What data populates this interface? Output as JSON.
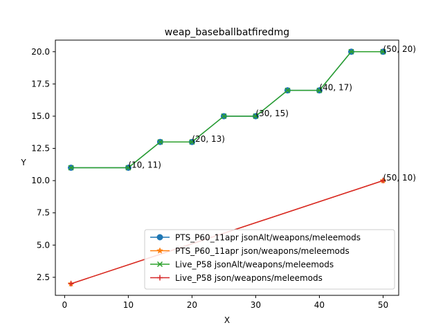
{
  "chart_data": {
    "type": "line",
    "title": "weap_baseballbatfiredmg",
    "xlabel": "X",
    "ylabel": "Y",
    "xlim": [
      -1.45,
      52.45
    ],
    "ylim": [
      1.1,
      20.9
    ],
    "xticks": [
      0,
      10,
      20,
      30,
      40,
      50
    ],
    "yticks": [
      2.5,
      5.0,
      7.5,
      10.0,
      12.5,
      15.0,
      17.5,
      20.0
    ],
    "grid": false,
    "legend_position": "lower-right",
    "series": [
      {
        "name": "PTS_P60_11apr jsonAlt/weapons/meleemods",
        "color": "#1f77b4",
        "marker": "circle",
        "x": [
          1,
          10,
          15,
          20,
          25,
          30,
          35,
          40,
          45,
          50
        ],
        "y": [
          11,
          11,
          13,
          13,
          15,
          15,
          17,
          17,
          20,
          20
        ]
      },
      {
        "name": "PTS_P60_11apr json/weapons/meleemods",
        "color": "#ff7f0e",
        "marker": "star",
        "x": [
          1,
          50
        ],
        "y": [
          2,
          10
        ]
      },
      {
        "name": "Live_P58 jsonAlt/weapons/meleemods",
        "color": "#2ca02c",
        "marker": "x",
        "x": [
          1,
          10,
          15,
          20,
          25,
          30,
          35,
          40,
          45,
          50
        ],
        "y": [
          11,
          11,
          13,
          13,
          15,
          15,
          17,
          17,
          20,
          20
        ]
      },
      {
        "name": "Live_P58 json/weapons/meleemods",
        "color": "#d62728",
        "marker": "plus",
        "x": [
          1,
          50
        ],
        "y": [
          2,
          10
        ]
      }
    ],
    "annotations": [
      {
        "x": 10,
        "y": 11,
        "text": "(10, 11)"
      },
      {
        "x": 20,
        "y": 13,
        "text": "(20, 13)"
      },
      {
        "x": 30,
        "y": 15,
        "text": "(30, 15)"
      },
      {
        "x": 40,
        "y": 17,
        "text": "(40, 17)"
      },
      {
        "x": 50,
        "y": 20,
        "text": "(50, 20)"
      },
      {
        "x": 50,
        "y": 10,
        "text": "(50, 10)"
      }
    ]
  }
}
